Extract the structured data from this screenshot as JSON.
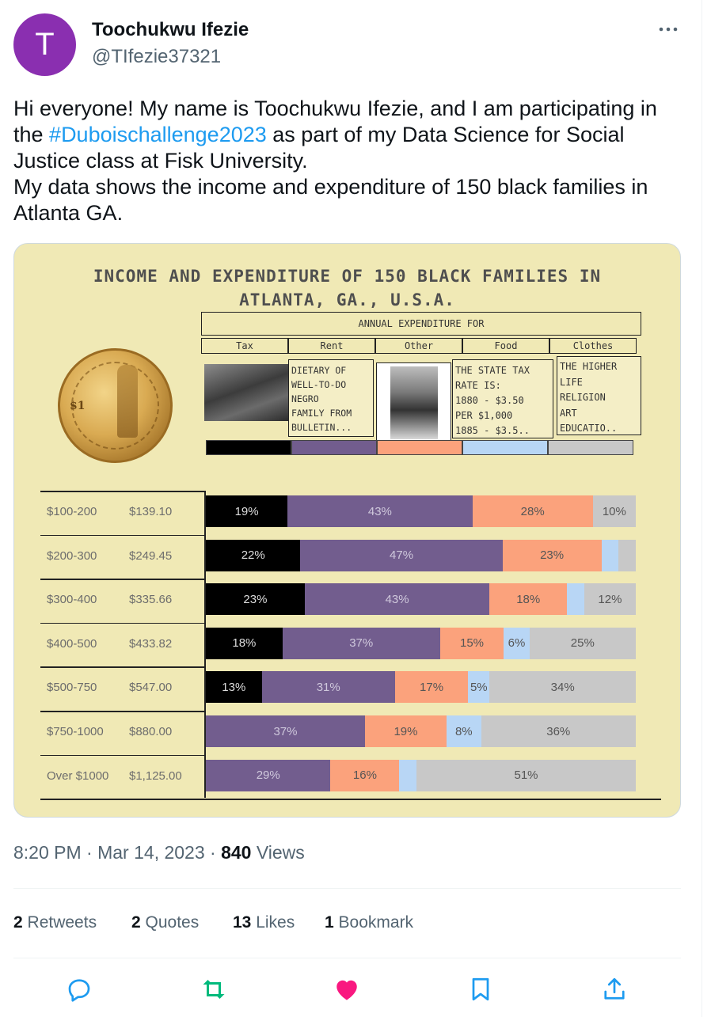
{
  "tweet": {
    "avatar_letter": "T",
    "display_name": "Toochukwu Ifezie",
    "handle": "@TIfezie37321",
    "text_before": "Hi everyone! My name is Toochukwu Ifezie, and I am participating in the ",
    "hashtag": "#Duboischallenge2023",
    "text_after": " as part of my Data Science for Social Justice class at Fisk University.",
    "text_line2": "My data shows the income and expenditure of 150 black families in Atlanta GA.",
    "time": "8:20 PM",
    "date": "Mar 14, 2023",
    "views_count": "840",
    "views_label": "Views"
  },
  "stats": {
    "retweets_count": "2",
    "retweets_label": "Retweets",
    "quotes_count": "2",
    "quotes_label": "Quotes",
    "likes_count": "13",
    "likes_label": "Likes",
    "bookmarks_count": "1",
    "bookmarks_label": "Bookmark"
  },
  "colors": {
    "link": "#1d9bf0",
    "like": "#f91880",
    "retweet": "#00ba7c",
    "muted": "#536471"
  },
  "image": {
    "title_line1": "INCOME AND EXPENDITURE OF 150 BLACK FAMILIES IN",
    "title_line2": "ATLANTA, GA., U.S.A.",
    "annual_header": "ANNUAL EXPENDITURE FOR",
    "coin_text": "$1",
    "rent_note": [
      "DIETARY OF",
      "WELL-TO-DO",
      "NEGRO",
      "FAMILY FROM",
      "BULLETIN..."
    ],
    "food_note": [
      "THE STATE TAX",
      "RATE IS:",
      "1880 - $3.50",
      "PER $1,000",
      "1885 - $3.5.."
    ],
    "clothes_note": [
      "THE HIGHER",
      "LIFE",
      "RELIGION",
      "ART",
      "EDUCATIO.."
    ]
  },
  "chart_data": {
    "type": "bar",
    "stacked": "horizontal-100%",
    "categories": [
      "Tax",
      "Rent",
      "Other",
      "Food",
      "Clothes"
    ],
    "category_colors": [
      "#000000",
      "#725d8e",
      "#fba27c",
      "#b8d6f5",
      "#c8c8c8"
    ],
    "rows": [
      {
        "class": "$100-200",
        "average": "$139.10",
        "values": [
          19,
          43,
          28,
          0,
          10
        ],
        "labels": [
          "19%",
          "43%",
          "28%",
          "",
          "10%"
        ]
      },
      {
        "class": "$200-300",
        "average": "$249.45",
        "values": [
          22,
          47,
          23,
          4,
          4
        ],
        "labels": [
          "22%",
          "47%",
          "23%",
          "",
          ""
        ]
      },
      {
        "class": "$300-400",
        "average": "$335.66",
        "values": [
          23,
          43,
          18,
          4,
          12
        ],
        "labels": [
          "23%",
          "43%",
          "18%",
          "",
          "12%"
        ]
      },
      {
        "class": "$400-500",
        "average": "$433.82",
        "values": [
          18,
          37,
          15,
          6,
          25
        ],
        "labels": [
          "18%",
          "37%",
          "15%",
          "6%",
          "25%"
        ]
      },
      {
        "class": "$500-750",
        "average": "$547.00",
        "values": [
          13,
          31,
          17,
          5,
          34
        ],
        "labels": [
          "13%",
          "31%",
          "17%",
          "5%",
          "34%"
        ]
      },
      {
        "class": "$750-1000",
        "average": "$880.00",
        "values": [
          0,
          37,
          19,
          8,
          36
        ],
        "labels": [
          "",
          "37%",
          "19%",
          "8%",
          "36%"
        ]
      },
      {
        "class": "Over $1000",
        "average": "$1,125.00",
        "values": [
          0,
          29,
          16,
          4,
          51
        ],
        "labels": [
          "",
          "29%",
          "16%",
          "",
          "51%"
        ]
      }
    ]
  }
}
